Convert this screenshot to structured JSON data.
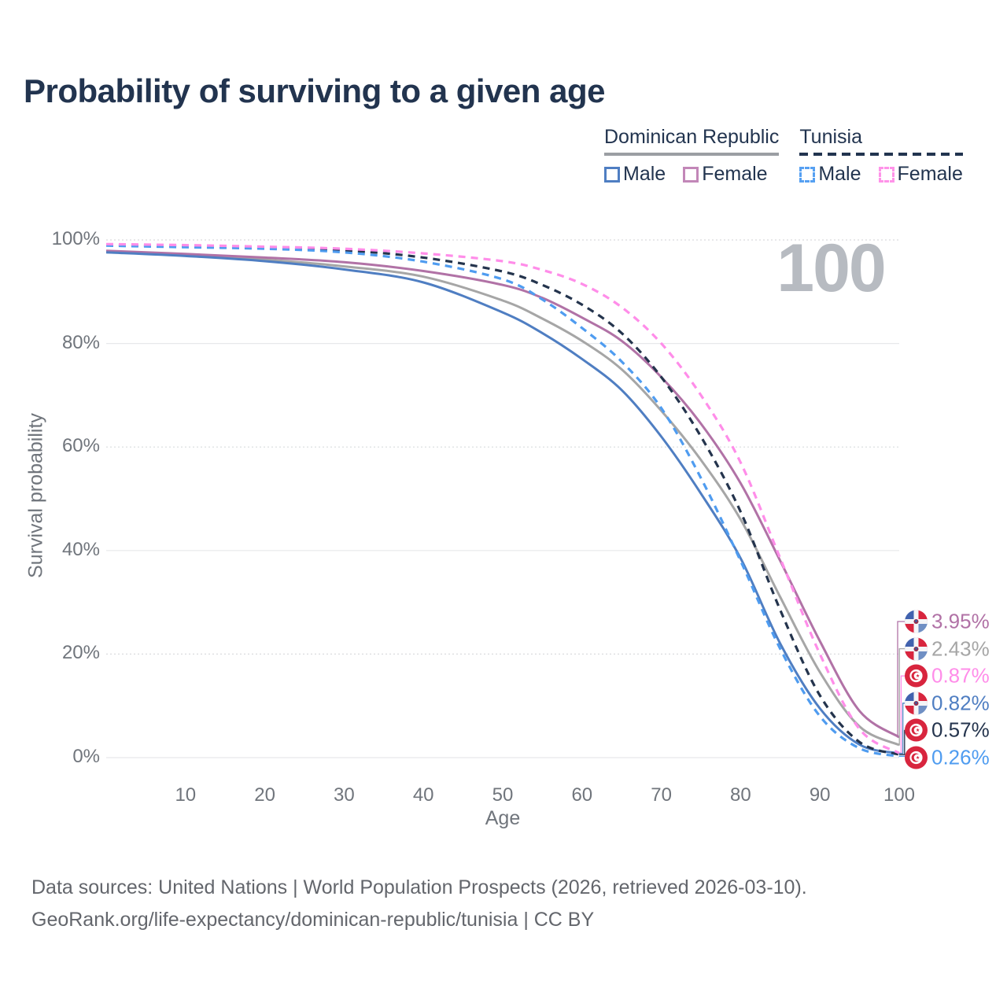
{
  "title": "Probability of surviving to a given age",
  "hover_age_indicator": "100",
  "legend": {
    "groups": [
      {
        "label": "Dominican Republic",
        "line_style": "solid",
        "line_color": "#9b9ea3",
        "items": [
          {
            "label": "Male",
            "color": "#4f7ec2",
            "line_style": "solid"
          },
          {
            "label": "Female",
            "color": "#c287b8",
            "line_style": "solid"
          }
        ]
      },
      {
        "label": "Tunisia",
        "line_style": "dashed",
        "line_color": "#22344f",
        "items": [
          {
            "label": "Male",
            "color": "#56a0f2",
            "line_style": "dashed"
          },
          {
            "label": "Female",
            "color": "#ff93e9",
            "line_style": "dashed"
          }
        ]
      }
    ]
  },
  "chart_data": {
    "type": "line",
    "title": "Probability of surviving to a given age",
    "xlabel": "Age",
    "ylabel": "Survival probability",
    "xlim": [
      0,
      100
    ],
    "ylim": [
      0,
      100
    ],
    "grid": "horizontal",
    "legend_position": "top-right",
    "x_ticks": [
      10,
      20,
      30,
      40,
      50,
      60,
      70,
      80,
      90,
      100
    ],
    "y_ticks": [
      {
        "value": 0,
        "label": "0%"
      },
      {
        "value": 20,
        "label": "20%"
      },
      {
        "value": 40,
        "label": "40%"
      },
      {
        "value": 60,
        "label": "60%"
      },
      {
        "value": 80,
        "label": "80%"
      },
      {
        "value": 100,
        "label": "100%"
      }
    ],
    "x": [
      0,
      10,
      20,
      30,
      40,
      50,
      55,
      60,
      65,
      70,
      75,
      80,
      85,
      90,
      95,
      100
    ],
    "series": [
      {
        "id": "dr-both",
        "name": "Dominican Republic — Both sexes",
        "country": "Dominican Republic",
        "sex": "Both sexes",
        "color": "#a6a6a6",
        "dash": "solid",
        "flag": "do",
        "end_label": "2.43%",
        "values": [
          97.8,
          97.1,
          96.2,
          94.9,
          92.9,
          88.3,
          84.8,
          80.5,
          75.0,
          67.0,
          57.5,
          46.0,
          31.0,
          16.5,
          6.0,
          2.43
        ]
      },
      {
        "id": "dr-female",
        "name": "Dominican Republic — Female",
        "country": "Dominican Republic",
        "sex": "Female",
        "color": "#b172a6",
        "dash": "solid",
        "flag": "do",
        "end_label": "3.95%",
        "values": [
          97.9,
          97.3,
          96.6,
          95.7,
          94.0,
          91.3,
          88.8,
          85.0,
          80.5,
          73.5,
          64.5,
          53.0,
          38.0,
          22.5,
          9.0,
          3.95
        ]
      },
      {
        "id": "dr-male",
        "name": "Dominican Republic — Male",
        "country": "Dominican Republic",
        "sex": "Male",
        "color": "#4f7ec2",
        "dash": "solid",
        "flag": "do",
        "end_label": "0.82%",
        "values": [
          97.6,
          96.9,
          95.9,
          94.3,
          91.8,
          86.0,
          82.0,
          77.0,
          71.0,
          62.0,
          51.0,
          38.5,
          22.0,
          9.5,
          2.5,
          0.82
        ]
      },
      {
        "id": "tn-both",
        "name": "Tunisia — Both sexes",
        "country": "Tunisia",
        "sex": "Both sexes",
        "color": "#24344d",
        "dash": "dashed",
        "flag": "tn",
        "end_label": "0.57%",
        "values": [
          99.0,
          98.8,
          98.5,
          98.0,
          96.6,
          93.9,
          91.3,
          87.5,
          82.0,
          73.5,
          62.0,
          47.5,
          28.5,
          12.0,
          3.0,
          0.57
        ]
      },
      {
        "id": "tn-male",
        "name": "Tunisia — Male",
        "country": "Tunisia",
        "sex": "Male",
        "color": "#4f9cf0",
        "dash": "dashed",
        "flag": "tn",
        "end_label": "0.26%",
        "values": [
          98.9,
          98.6,
          98.3,
          97.6,
          95.8,
          92.4,
          88.5,
          83.0,
          76.5,
          67.5,
          54.0,
          38.0,
          21.0,
          8.0,
          1.8,
          0.26
        ]
      },
      {
        "id": "tn-female",
        "name": "Tunisia — Female",
        "country": "Tunisia",
        "sex": "Female",
        "color": "#ff8de9",
        "dash": "dashed",
        "flag": "tn",
        "end_label": "0.87%",
        "values": [
          99.2,
          99.0,
          98.7,
          98.3,
          97.4,
          95.9,
          94.2,
          91.5,
          87.0,
          80.0,
          70.0,
          57.0,
          38.5,
          20.0,
          5.5,
          0.87
        ]
      }
    ]
  },
  "footer": {
    "line1": "Data sources: United Nations | World Population Prospects (2026, retrieved 2026-03-10).",
    "line2": "GeoRank.org/life-expectancy/dominican-republic/tunisia | CC BY"
  }
}
